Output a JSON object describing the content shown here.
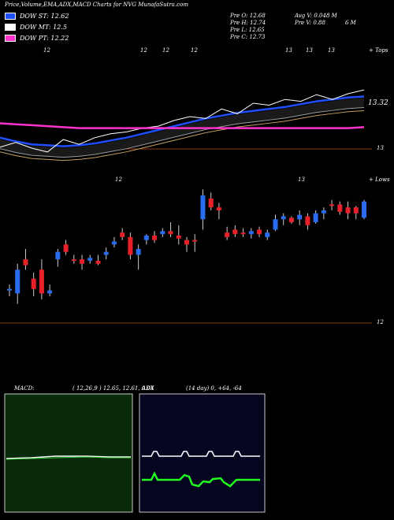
{
  "title": "Price,Volume,EMA,ADX,MACD Charts for NVG MunafaSutra.com",
  "legend": [
    {
      "label": "DOW ST: 12.62",
      "color": "#1f4fff"
    },
    {
      "label": "DOW MT: 12.5",
      "color": "#ffffff"
    },
    {
      "label": "DOW PT: 12.22",
      "color": "#ff33cc"
    }
  ],
  "stats": {
    "prev_open": "Pre   O: 12.68",
    "prev_high": "Pre   H: 12.74",
    "prev_low": "Pre   L: 12.65",
    "prev_close": "Pre   C: 12.73",
    "avg_volume": "Avg V: 0.048 M",
    "prev_volume": "Pre   V: 0.88",
    "volume_suffix": "6  M"
  },
  "panel_labels": {
    "ema_top_marks": [
      "12",
      "12",
      "12",
      "12",
      "13",
      "13",
      "13"
    ],
    "ema_top_right": "+ Tops",
    "ema_price_label": "13.32",
    "ema_axis_13": "13",
    "candle_top_marks": [
      "12",
      "13"
    ],
    "candle_top_right": "+ Lows",
    "candle_axis_12": "12"
  },
  "macd": {
    "label": "MACD:",
    "values": "( 12,26,9 ) 12.65,  12.61,  0.04"
  },
  "adx": {
    "label": "ADX",
    "values": "(14  day) 0,  +64,  -64"
  },
  "chart_data": {
    "type": "candlestick",
    "title": "Price,Volume,EMA,ADX,MACD Charts for NVG MunafaSutra.com",
    "ylim": [
      11.8,
      13.5
    ],
    "candles": [
      {
        "o": 12.25,
        "h": 12.28,
        "l": 12.2,
        "c": 12.24,
        "color": "blue"
      },
      {
        "o": 12.22,
        "h": 12.42,
        "l": 12.15,
        "c": 12.38,
        "color": "blue"
      },
      {
        "o": 12.45,
        "h": 12.52,
        "l": 12.38,
        "c": 12.41,
        "color": "red"
      },
      {
        "o": 12.32,
        "h": 12.36,
        "l": 12.2,
        "c": 12.25,
        "color": "red"
      },
      {
        "o": 12.38,
        "h": 12.45,
        "l": 12.18,
        "c": 12.22,
        "color": "red"
      },
      {
        "o": 12.22,
        "h": 12.28,
        "l": 12.2,
        "c": 12.24,
        "color": "blue"
      },
      {
        "o": 12.45,
        "h": 12.52,
        "l": 12.4,
        "c": 12.5,
        "color": "blue"
      },
      {
        "o": 12.55,
        "h": 12.58,
        "l": 12.48,
        "c": 12.5,
        "color": "red"
      },
      {
        "o": 12.44,
        "h": 12.48,
        "l": 12.42,
        "c": 12.45,
        "color": "red"
      },
      {
        "o": 12.45,
        "h": 12.48,
        "l": 12.38,
        "c": 12.42,
        "color": "red"
      },
      {
        "o": 12.44,
        "h": 12.48,
        "l": 12.42,
        "c": 12.46,
        "color": "blue"
      },
      {
        "o": 12.42,
        "h": 12.48,
        "l": 12.41,
        "c": 12.44,
        "color": "red"
      },
      {
        "o": 12.48,
        "h": 12.53,
        "l": 12.45,
        "c": 12.5,
        "color": "blue"
      },
      {
        "o": 12.55,
        "h": 12.6,
        "l": 12.53,
        "c": 12.57,
        "color": "blue"
      },
      {
        "o": 12.63,
        "h": 12.66,
        "l": 12.58,
        "c": 12.6,
        "color": "red"
      },
      {
        "o": 12.6,
        "h": 12.63,
        "l": 12.45,
        "c": 12.48,
        "color": "red"
      },
      {
        "o": 12.48,
        "h": 12.55,
        "l": 12.38,
        "c": 12.52,
        "color": "blue"
      },
      {
        "o": 12.58,
        "h": 12.62,
        "l": 12.55,
        "c": 12.61,
        "color": "blue"
      },
      {
        "o": 12.61,
        "h": 12.64,
        "l": 12.56,
        "c": 12.58,
        "color": "red"
      },
      {
        "o": 12.62,
        "h": 12.66,
        "l": 12.6,
        "c": 12.64,
        "color": "blue"
      },
      {
        "o": 12.64,
        "h": 12.7,
        "l": 12.6,
        "c": 12.62,
        "color": "red"
      },
      {
        "o": 12.61,
        "h": 12.68,
        "l": 12.55,
        "c": 12.59,
        "color": "red"
      },
      {
        "o": 12.55,
        "h": 12.6,
        "l": 12.5,
        "c": 12.58,
        "color": "red"
      },
      {
        "o": 12.58,
        "h": 12.62,
        "l": 12.5,
        "c": 12.57,
        "color": "red"
      },
      {
        "o": 12.72,
        "h": 12.92,
        "l": 12.65,
        "c": 12.88,
        "color": "blue"
      },
      {
        "o": 12.86,
        "h": 12.9,
        "l": 12.78,
        "c": 12.8,
        "color": "red"
      },
      {
        "o": 12.8,
        "h": 12.83,
        "l": 12.72,
        "c": 12.78,
        "color": "red"
      },
      {
        "o": 12.63,
        "h": 12.67,
        "l": 12.58,
        "c": 12.6,
        "color": "red"
      },
      {
        "o": 12.65,
        "h": 12.68,
        "l": 12.6,
        "c": 12.62,
        "color": "red"
      },
      {
        "o": 12.62,
        "h": 12.66,
        "l": 12.6,
        "c": 12.63,
        "color": "red"
      },
      {
        "o": 12.62,
        "h": 12.66,
        "l": 12.59,
        "c": 12.64,
        "color": "blue"
      },
      {
        "o": 12.65,
        "h": 12.67,
        "l": 12.6,
        "c": 12.62,
        "color": "red"
      },
      {
        "o": 12.6,
        "h": 12.65,
        "l": 12.58,
        "c": 12.63,
        "color": "blue"
      },
      {
        "o": 12.65,
        "h": 12.75,
        "l": 12.64,
        "c": 12.72,
        "color": "blue"
      },
      {
        "o": 12.72,
        "h": 12.76,
        "l": 12.68,
        "c": 12.74,
        "color": "blue"
      },
      {
        "o": 12.7,
        "h": 12.74,
        "l": 12.69,
        "c": 12.73,
        "color": "red"
      },
      {
        "o": 12.72,
        "h": 12.78,
        "l": 12.68,
        "c": 12.75,
        "color": "blue"
      },
      {
        "o": 12.74,
        "h": 12.76,
        "l": 12.65,
        "c": 12.68,
        "color": "red"
      },
      {
        "o": 12.7,
        "h": 12.78,
        "l": 12.69,
        "c": 12.76,
        "color": "blue"
      },
      {
        "o": 12.76,
        "h": 12.8,
        "l": 12.72,
        "c": 12.78,
        "color": "blue"
      },
      {
        "o": 12.82,
        "h": 12.85,
        "l": 12.78,
        "c": 12.81,
        "color": "red"
      },
      {
        "o": 12.82,
        "h": 12.84,
        "l": 12.75,
        "c": 12.77,
        "color": "red"
      },
      {
        "o": 12.8,
        "h": 12.84,
        "l": 12.72,
        "c": 12.76,
        "color": "red"
      },
      {
        "o": 12.76,
        "h": 12.81,
        "l": 12.72,
        "c": 12.8,
        "color": "red"
      },
      {
        "o": 12.73,
        "h": 12.85,
        "l": 12.72,
        "c": 12.84,
        "color": "blue"
      }
    ],
    "ema_lines": [
      {
        "name": "DOW ST",
        "color": "#1f4fff",
        "values": [
          12.9,
          12.86,
          12.83,
          12.82,
          12.81,
          12.82,
          12.84,
          12.87,
          12.9,
          12.94,
          12.98,
          13.02,
          13.06,
          13.1,
          13.13,
          13.16,
          13.18,
          13.2,
          13.22,
          13.25,
          13.28,
          13.3,
          13.32,
          13.33
        ]
      },
      {
        "name": "DOW MT",
        "color": "#ffffff",
        "values": [
          12.8,
          12.85,
          12.79,
          12.75,
          12.88,
          12.83,
          12.9,
          12.94,
          12.96,
          13.0,
          13.02,
          13.08,
          13.12,
          13.1,
          13.2,
          13.15,
          13.26,
          13.24,
          13.3,
          13.28,
          13.35,
          13.3,
          13.36,
          13.4
        ]
      },
      {
        "name": "DOW PT",
        "color": "#ff33cc",
        "values": [
          13.05,
          13.04,
          13.03,
          13.02,
          13.01,
          13.0,
          13.0,
          13.0,
          13.0,
          13.0,
          13.0,
          13.0,
          13.0,
          13.0,
          13.0,
          13.0,
          13.0,
          13.0,
          13.0,
          13.0,
          13.0,
          13.0,
          13.0,
          13.01
        ]
      }
    ],
    "macd": {
      "fast": 12,
      "slow": 26,
      "signal": 9,
      "values": [
        12.65,
        12.61,
        0.04
      ]
    },
    "adx": {
      "period": 14,
      "values": [
        0,
        64,
        -64
      ]
    }
  }
}
